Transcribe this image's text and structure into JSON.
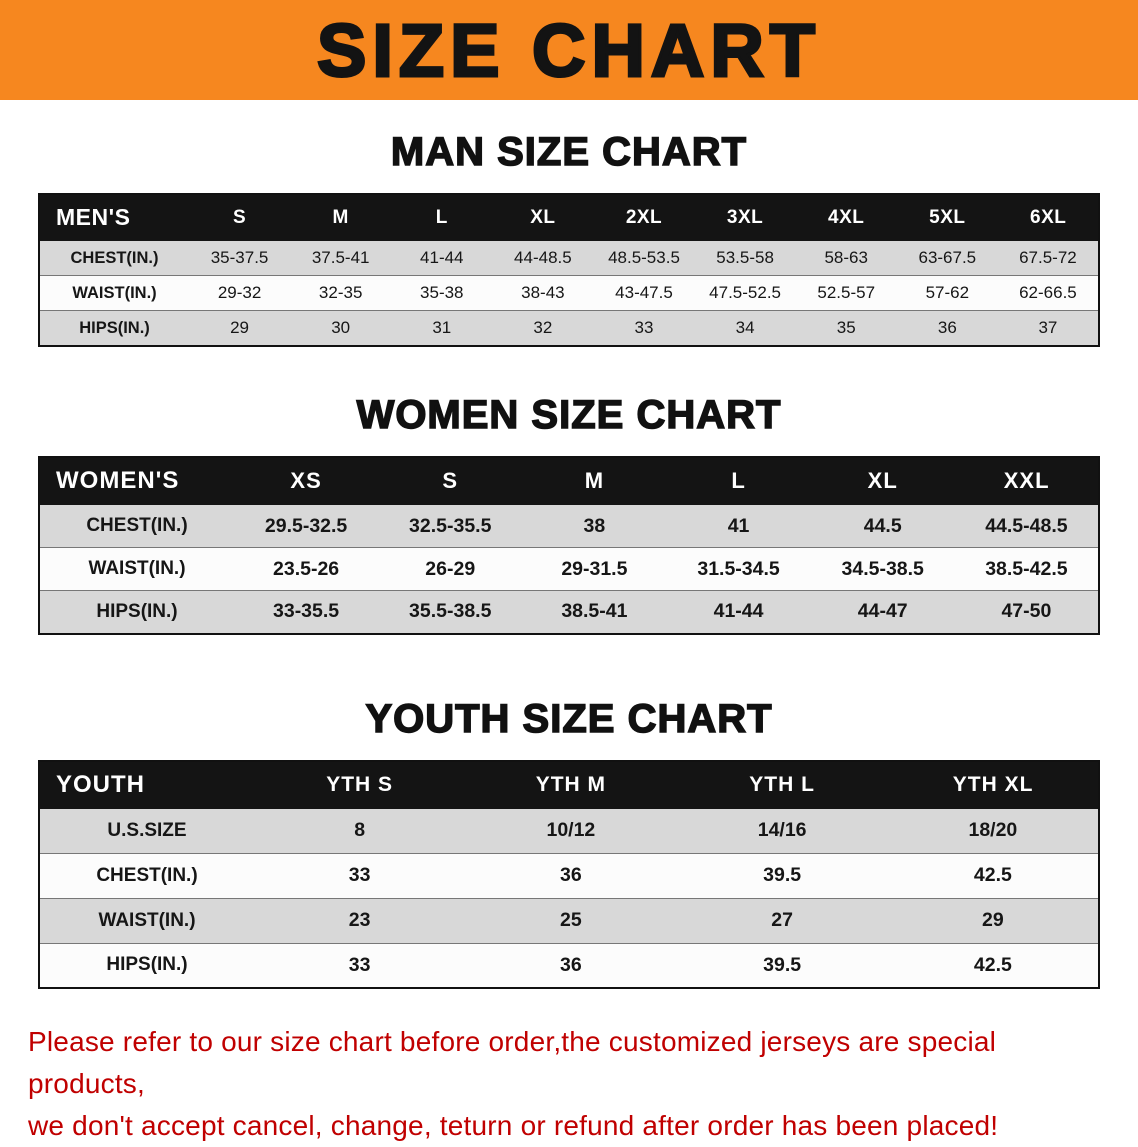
{
  "banner": {
    "title": "SIZE CHART",
    "bg_color": "#f6871f",
    "text_color": "#131313"
  },
  "sections": {
    "men": {
      "heading": "MAN SIZE CHART",
      "table": {
        "header": [
          "MEN'S",
          "S",
          "M",
          "L",
          "XL",
          "2XL",
          "3XL",
          "4XL",
          "5XL",
          "6XL"
        ],
        "rows": [
          [
            "CHEST(IN.)",
            "35-37.5",
            "37.5-41",
            "41-44",
            "44-48.5",
            "48.5-53.5",
            "53.5-58",
            "58-63",
            "63-67.5",
            "67.5-72"
          ],
          [
            "WAIST(IN.)",
            "29-32",
            "32-35",
            "35-38",
            "38-43",
            "43-47.5",
            "47.5-52.5",
            "52.5-57",
            "57-62",
            "62-66.5"
          ],
          [
            "HIPS(IN.)",
            "29",
            "30",
            "31",
            "32",
            "33",
            "34",
            "35",
            "36",
            "37"
          ]
        ]
      }
    },
    "women": {
      "heading": "WOMEN SIZE CHART",
      "table": {
        "header": [
          "WOMEN'S",
          "XS",
          "S",
          "M",
          "L",
          "XL",
          "XXL"
        ],
        "rows": [
          [
            "CHEST(IN.)",
            "29.5-32.5",
            "32.5-35.5",
            "38",
            "41",
            "44.5",
            "44.5-48.5"
          ],
          [
            "WAIST(IN.)",
            "23.5-26",
            "26-29",
            "29-31.5",
            "31.5-34.5",
            "34.5-38.5",
            "38.5-42.5"
          ],
          [
            "HIPS(IN.)",
            "33-35.5",
            "35.5-38.5",
            "38.5-41",
            "41-44",
            "44-47",
            "47-50"
          ]
        ]
      }
    },
    "youth": {
      "heading": "YOUTH SIZE CHART",
      "table": {
        "header": [
          "YOUTH",
          "YTH S",
          "YTH M",
          "YTH L",
          "YTH XL"
        ],
        "rows": [
          [
            "U.S.SIZE",
            "8",
            "10/12",
            "14/16",
            "18/20"
          ],
          [
            "CHEST(IN.)",
            "33",
            "36",
            "39.5",
            "42.5"
          ],
          [
            "WAIST(IN.)",
            "23",
            "25",
            "27",
            "29"
          ],
          [
            "HIPS(IN.)",
            "33",
            "36",
            "39.5",
            "42.5"
          ]
        ]
      }
    }
  },
  "notice": {
    "line1": "Please refer to our size chart before order,the customized jerseys are special products,",
    "line2": "we don't accept cancel, change, teturn or refund after order has been placed!",
    "color": "#c00000"
  }
}
